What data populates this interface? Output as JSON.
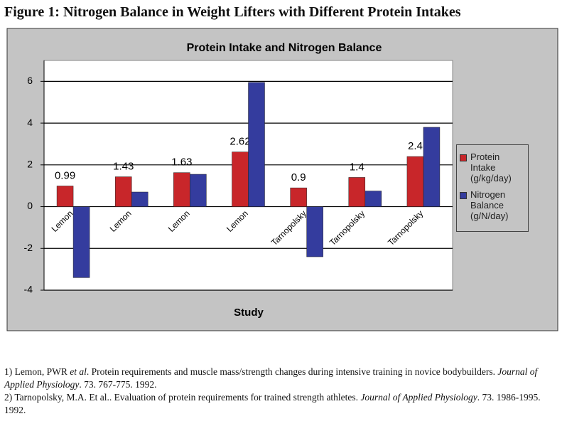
{
  "figure_title": "Figure 1: Nitrogen Balance in Weight Lifters with Different Protein Intakes",
  "chart_data": {
    "type": "bar",
    "title": "Protein Intake and Nitrogen Balance",
    "x_label": "Study",
    "categories": [
      "Lemon",
      "Lemon",
      "Lemon",
      "Lemon",
      "Tarnopolsky",
      "Tarnopolsky",
      "Tarnopolsky"
    ],
    "series": [
      {
        "name": "Protein Intake (g/kg/day)",
        "color": "#c8262a",
        "values": [
          0.99,
          1.43,
          1.63,
          2.62,
          0.9,
          1.4,
          2.4
        ],
        "show_labels": true
      },
      {
        "name": "Nitrogen Balance (g/N/day)",
        "color": "#343c9e",
        "values": [
          -3.4,
          0.7,
          1.55,
          5.95,
          -2.4,
          0.75,
          3.8
        ],
        "show_labels": false
      }
    ],
    "ylim": [
      -4,
      7
    ],
    "yticks": [
      -4,
      -2,
      0,
      2,
      4,
      6
    ],
    "grid": true,
    "legend": "right"
  },
  "references": [
    {
      "parts": [
        {
          "text": "1) Lemon, PWR "
        },
        {
          "text": "et al",
          "italic": true
        },
        {
          "text": ". Protein requirements and muscle mass/strength changes during intensive training in novice bodybuilders. "
        },
        {
          "text": "Journal of Applied Physiology",
          "italic": true
        },
        {
          "text": ". 73. 767-775. 1992."
        }
      ]
    },
    {
      "parts": [
        {
          "text": "2) Tarnopolsky, M.A. Et al.. Evaluation of protein requirements for trained strength athletes. "
        },
        {
          "text": "Journal of Applied Physiology",
          "italic": true
        },
        {
          "text": ". 73. 1986-1995. 1992."
        }
      ]
    }
  ]
}
